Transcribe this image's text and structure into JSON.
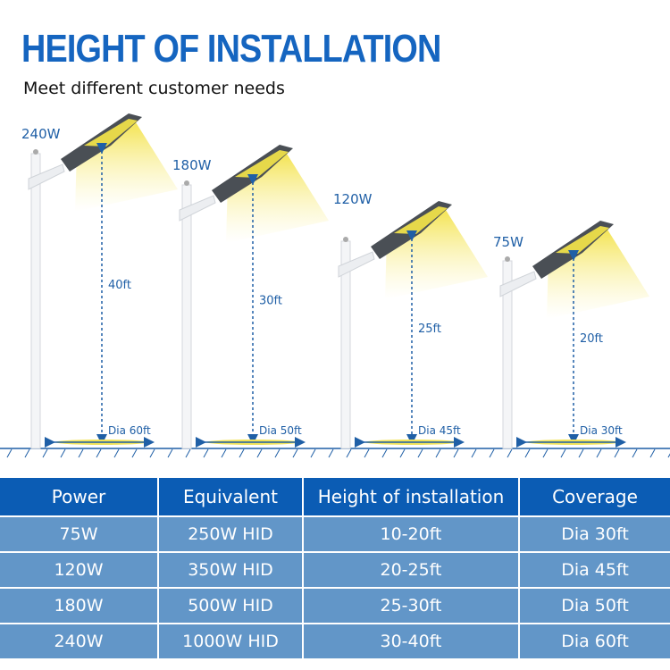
{
  "title": "HEIGHT OF INSTALLATION",
  "subtitle": "Meet different customer needs",
  "lamps": [
    {
      "power": "240W",
      "height": "40ft",
      "coverage": "Dia 60ft"
    },
    {
      "power": "180W",
      "height": "30ft",
      "coverage": "Dia 50ft"
    },
    {
      "power": "120W",
      "height": "25ft",
      "coverage": "Dia 45ft"
    },
    {
      "power": "75W",
      "height": "20ft",
      "coverage": "Dia 30ft"
    }
  ],
  "table": {
    "headers": [
      "Power",
      "Equivalent",
      "Height of installation",
      "Coverage"
    ],
    "rows": [
      [
        "75W",
        "250W HID",
        "10-20ft",
        "Dia 30ft"
      ],
      [
        "120W",
        "350W HID",
        "20-25ft",
        "Dia 45ft"
      ],
      [
        "180W",
        "500W HID",
        "25-30ft",
        "Dia 50ft"
      ],
      [
        "240W",
        "1000W HID",
        "30-40ft",
        "Dia 60ft"
      ]
    ]
  },
  "colors": {
    "title": "#1565c0",
    "header_bg": "#0b5cb4",
    "row_bg": "#6296c8",
    "light": "#f5e860"
  }
}
